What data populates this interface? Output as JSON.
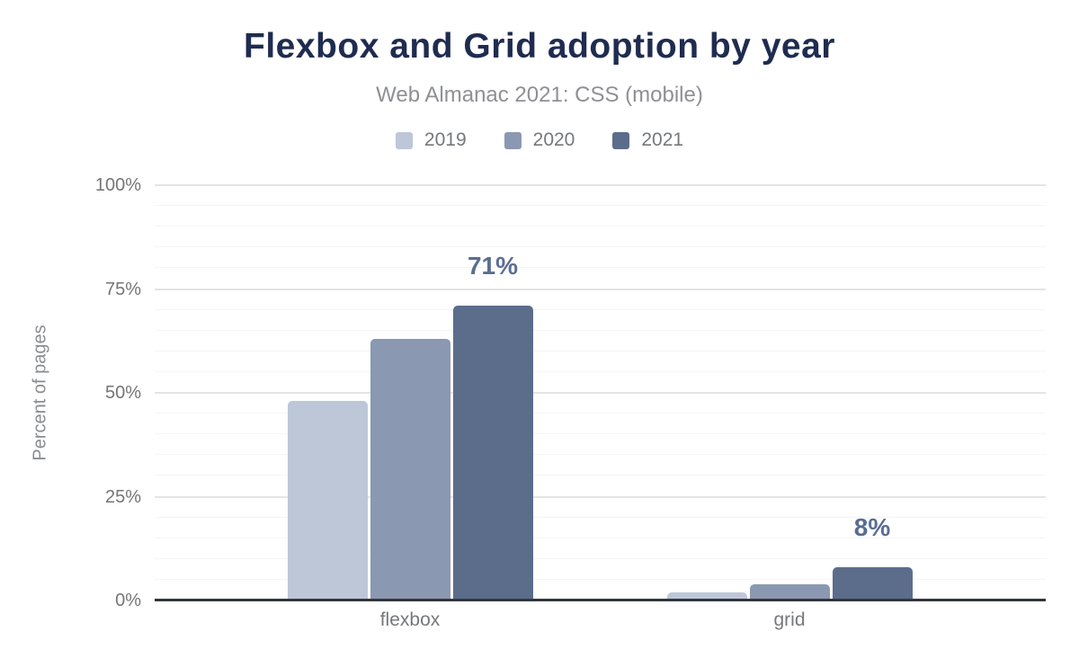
{
  "chart": {
    "title": "Flexbox and Grid adoption by year",
    "subtitle": "Web Almanac 2021: CSS (mobile)"
  },
  "legend": {
    "position": "top",
    "items": [
      {
        "label": "2019",
        "color": "#bdc7d7"
      },
      {
        "label": "2020",
        "color": "#8b98b1"
      },
      {
        "label": "2021",
        "color": "#5c6d8c"
      }
    ]
  },
  "colors": {
    "title_text": "#1f2c50",
    "subtitle_text": "#8e9094",
    "axis_text": "#757575",
    "axis_line": "#33363c",
    "grid_major": "#e4e4e6",
    "grid_minor": "#f5f5f5",
    "annotation_text": "#5a6d93",
    "background": "#ffffff"
  },
  "chart_data": {
    "type": "bar",
    "title": "Flexbox and Grid adoption by year",
    "subtitle": "Web Almanac 2021: CSS (mobile)",
    "categories": [
      "flexbox",
      "grid"
    ],
    "series": [
      {
        "name": "2019",
        "color": "#bdc7d7",
        "values": [
          48,
          2
        ]
      },
      {
        "name": "2020",
        "color": "#8b98b1",
        "values": [
          63,
          4
        ]
      },
      {
        "name": "2021",
        "color": "#5c6d8c",
        "values": [
          71,
          8
        ]
      }
    ],
    "annotations": [
      {
        "category": "flexbox",
        "series": "2021",
        "label": "71%"
      },
      {
        "category": "grid",
        "series": "2021",
        "label": "8%"
      }
    ],
    "xlabel": "",
    "ylabel": "Percent of pages",
    "ylim": [
      0,
      100
    ],
    "yticks": [
      {
        "value": 0,
        "label": "0%"
      },
      {
        "value": 25,
        "label": "25%"
      },
      {
        "value": 50,
        "label": "50%"
      },
      {
        "value": 75,
        "label": "75%"
      },
      {
        "value": 100,
        "label": "100%"
      }
    ],
    "minor_grid_step_percent": 5,
    "grid": true,
    "legend_position": "top"
  }
}
